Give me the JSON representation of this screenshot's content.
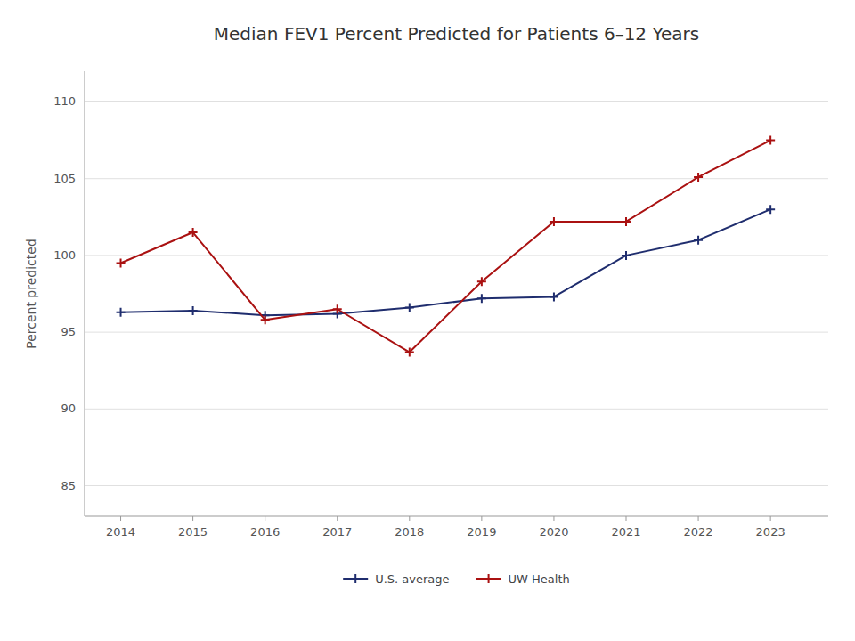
{
  "chart_data": {
    "type": "line",
    "title": "Median FEV1 Percent Predicted for Patients 6–12 Years",
    "ylabel": "Percent predicted",
    "x": [
      2014,
      2015,
      2016,
      2017,
      2018,
      2019,
      2020,
      2021,
      2022,
      2023
    ],
    "xlim": [
      2013.5,
      2023.8
    ],
    "xticks": [
      2014,
      2015,
      2016,
      2017,
      2018,
      2019,
      2020,
      2021,
      2022,
      2023
    ],
    "ylim": [
      83,
      112
    ],
    "yticks": [
      85,
      90,
      95,
      100,
      105,
      110
    ],
    "grid": true,
    "legend": "bottom",
    "series": [
      {
        "name": "U.S. average",
        "color": "#1f2d6e",
        "marker": "plus",
        "values": [
          96.3,
          96.4,
          96.1,
          96.2,
          96.6,
          97.2,
          97.3,
          100.0,
          101.0,
          103.0
        ]
      },
      {
        "name": "UW Health",
        "color": "#aa1111",
        "marker": "plus",
        "values": [
          99.5,
          101.5,
          95.8,
          96.5,
          93.7,
          98.3,
          102.2,
          102.2,
          105.1,
          107.5
        ]
      }
    ]
  }
}
